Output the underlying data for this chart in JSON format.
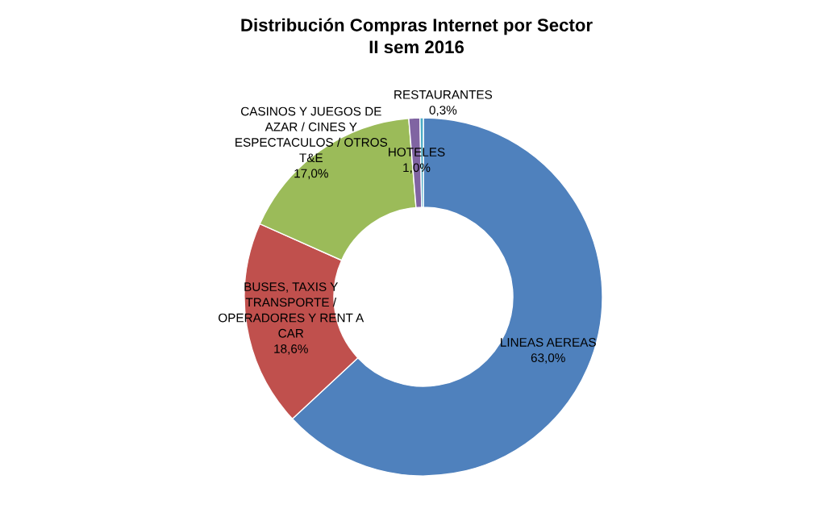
{
  "chart_data": {
    "type": "donut",
    "title": "Distribución Compras Internet por Sector\nII sem 2016",
    "categories": [
      "LINEAS AEREAS",
      "BUSES, TAXIS Y\nTRANSPORTE /\nOPERADORES Y RENT A\nCAR",
      "CASINOS Y JUEGOS DE\nAZAR / CINES Y\nESPECTACULOS / OTROS\nT&E",
      "HOTELES",
      "RESTAURANTES"
    ],
    "values": [
      63.0,
      18.6,
      17.0,
      1.0,
      0.3
    ],
    "value_labels": [
      "63,0%",
      "18,6%",
      "17,0%",
      "1,0%",
      "0,3%"
    ],
    "colors": [
      "#4f81bd",
      "#c0504d",
      "#9bbb59",
      "#8064a2",
      "#4bacc6"
    ],
    "legend": false
  }
}
